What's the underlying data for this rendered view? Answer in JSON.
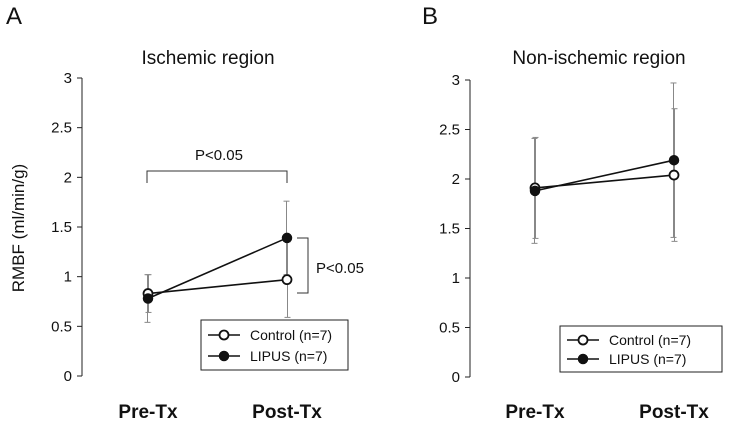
{
  "chart_data": [
    {
      "type": "line",
      "panel_label": "A",
      "title": "Ischemic region",
      "ylabel": "RMBF  (ml/min/g)",
      "xlabel": "",
      "ylim": [
        0,
        3
      ],
      "yticks": [
        0,
        0.5,
        1,
        1.5,
        2,
        2.5,
        3
      ],
      "ytick_labels": [
        "0",
        "0.5",
        "1",
        "1.5",
        "2",
        "2.5",
        "3"
      ],
      "categories": [
        "Pre-Tx",
        "Post-Tx"
      ],
      "grid": false,
      "legend_position": "bottom-right",
      "series": [
        {
          "name": "Control (n=7)",
          "marker": "open-circle",
          "values": [
            0.83,
            0.97
          ],
          "error": [
            0.19,
            0.38
          ]
        },
        {
          "name": "LIPUS (n=7)",
          "marker": "filled-circle",
          "values": [
            0.78,
            1.39
          ],
          "error": [
            0.24,
            0.37
          ]
        }
      ],
      "annotations": [
        {
          "text": "P<0.05",
          "type": "horizontal-bracket",
          "between": [
            "Pre-Tx",
            "Post-Tx"
          ]
        },
        {
          "text": "P<0.05",
          "type": "vertical-bracket",
          "between": [
            "Control (n=7)",
            "LIPUS (n=7)"
          ],
          "at": "Post-Tx"
        }
      ]
    },
    {
      "type": "line",
      "panel_label": "B",
      "title": "Non-ischemic region",
      "ylabel": "",
      "xlabel": "",
      "ylim": [
        0,
        3
      ],
      "yticks": [
        0,
        0.5,
        1,
        1.5,
        2,
        2.5,
        3
      ],
      "ytick_labels": [
        "0",
        "0.5",
        "1",
        "1.5",
        "2",
        "2.5",
        "3"
      ],
      "categories": [
        "Pre-Tx",
        "Post-Tx"
      ],
      "grid": false,
      "legend_position": "bottom-right",
      "series": [
        {
          "name": "Control (n=7)",
          "marker": "open-circle",
          "values": [
            1.91,
            2.04
          ],
          "error": [
            0.51,
            0.67
          ]
        },
        {
          "name": "LIPUS (n=7)",
          "marker": "filled-circle",
          "values": [
            1.88,
            2.19
          ],
          "error": [
            0.53,
            0.78
          ]
        }
      ],
      "annotations": []
    }
  ]
}
